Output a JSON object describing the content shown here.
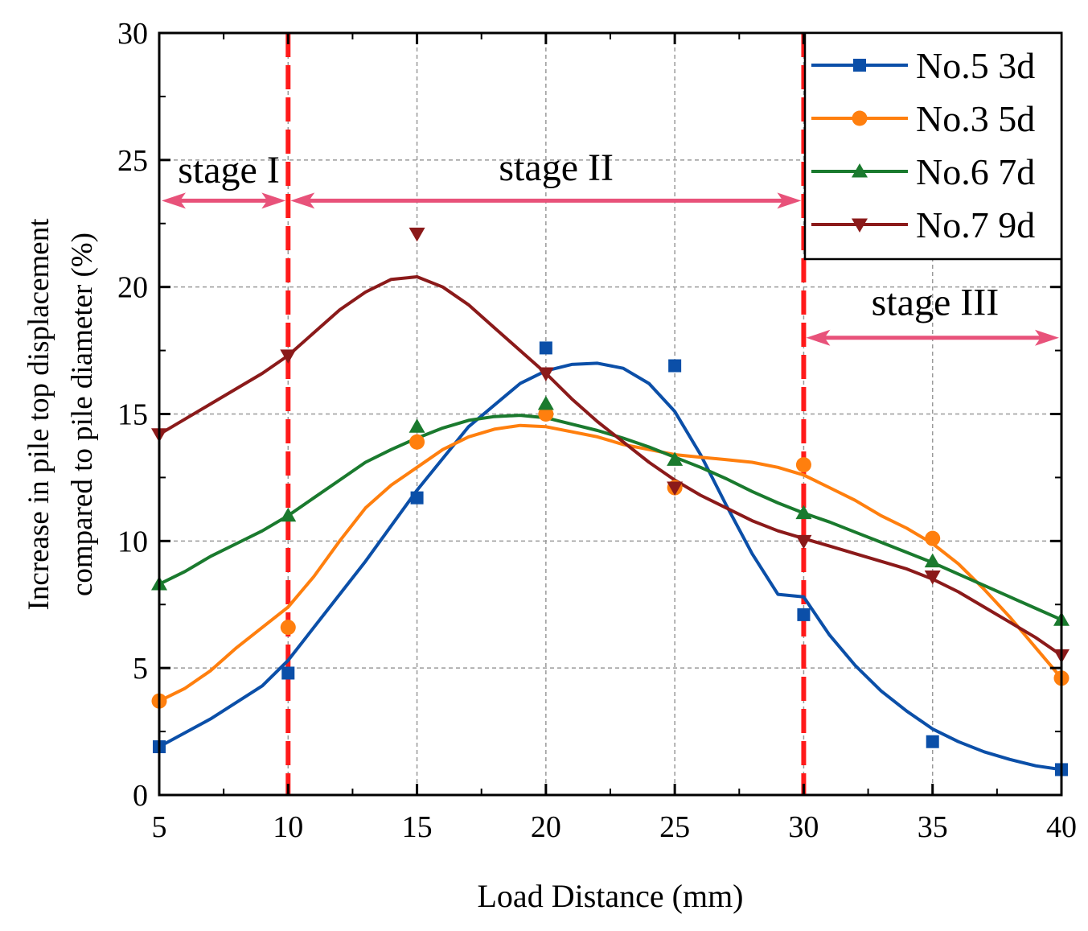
{
  "chart_data": {
    "type": "scatter",
    "title": "",
    "xlabel": "Load Distance (mm)",
    "ylabel_lines": [
      "Increase in pile top displacement",
      "compared to pile diameter (%)"
    ],
    "xlim": [
      5,
      40
    ],
    "ylim": [
      0,
      30
    ],
    "x_ticks": [
      5,
      10,
      15,
      20,
      25,
      30,
      35,
      40
    ],
    "y_ticks": [
      0,
      5,
      10,
      15,
      20,
      25,
      30
    ],
    "grid": true,
    "legend_position": "top-right",
    "series": [
      {
        "name": "No.5 3d",
        "color": "#0b4fa8",
        "marker": "square",
        "x": [
          5,
          10,
          15,
          20,
          25,
          30,
          35,
          40
        ],
        "values": [
          1.9,
          4.8,
          11.7,
          17.6,
          16.9,
          7.1,
          2.1,
          1.0
        ],
        "fit_curve": [
          [
            5,
            1.9
          ],
          [
            7,
            3.0
          ],
          [
            9,
            4.3
          ],
          [
            10,
            5.3
          ],
          [
            11,
            6.6
          ],
          [
            13,
            9.2
          ],
          [
            15,
            12.0
          ],
          [
            17,
            14.5
          ],
          [
            19,
            16.2
          ],
          [
            20,
            16.7
          ],
          [
            21,
            16.95
          ],
          [
            22,
            17.0
          ],
          [
            23,
            16.8
          ],
          [
            24,
            16.2
          ],
          [
            25,
            15.1
          ],
          [
            26,
            13.4
          ],
          [
            27,
            11.4
          ],
          [
            28,
            9.5
          ],
          [
            29,
            7.9
          ],
          [
            30,
            7.8
          ],
          [
            31,
            6.3
          ],
          [
            32,
            5.1
          ],
          [
            33,
            4.1
          ],
          [
            34,
            3.3
          ],
          [
            35,
            2.6
          ],
          [
            36,
            2.1
          ],
          [
            37,
            1.7
          ],
          [
            38,
            1.4
          ],
          [
            39,
            1.15
          ],
          [
            40,
            1.0
          ]
        ]
      },
      {
        "name": "No.3 5d",
        "color": "#ff7f0e",
        "marker": "circle",
        "x": [
          5,
          10,
          15,
          20,
          25,
          30,
          35,
          40
        ],
        "values": [
          3.7,
          6.6,
          13.9,
          15.0,
          12.1,
          13.0,
          10.1,
          4.6
        ],
        "fit_curve": [
          [
            5,
            3.7
          ],
          [
            6,
            4.2
          ],
          [
            7,
            4.9
          ],
          [
            8,
            5.8
          ],
          [
            9,
            6.6
          ],
          [
            10,
            7.4
          ],
          [
            11,
            8.6
          ],
          [
            12,
            10.0
          ],
          [
            13,
            11.3
          ],
          [
            14,
            12.2
          ],
          [
            15,
            12.9
          ],
          [
            16,
            13.6
          ],
          [
            17,
            14.1
          ],
          [
            18,
            14.4
          ],
          [
            19,
            14.55
          ],
          [
            20,
            14.5
          ],
          [
            21,
            14.3
          ],
          [
            22,
            14.1
          ],
          [
            23,
            13.8
          ],
          [
            24,
            13.6
          ],
          [
            25,
            13.4
          ],
          [
            26,
            13.3
          ],
          [
            27,
            13.2
          ],
          [
            28,
            13.1
          ],
          [
            29,
            12.9
          ],
          [
            30,
            12.6
          ],
          [
            31,
            12.1
          ],
          [
            32,
            11.6
          ],
          [
            33,
            11.0
          ],
          [
            34,
            10.5
          ],
          [
            35,
            9.9
          ],
          [
            36,
            9.1
          ],
          [
            37,
            8.1
          ],
          [
            38,
            7.0
          ],
          [
            39,
            5.8
          ],
          [
            40,
            4.6
          ]
        ]
      },
      {
        "name": "No.6 7d",
        "color": "#1a7a2e",
        "marker": "triangle-up",
        "x": [
          5,
          10,
          15,
          20,
          25,
          30,
          35,
          40
        ],
        "values": [
          8.3,
          11.0,
          14.5,
          15.4,
          13.2,
          11.1,
          9.2,
          6.9
        ],
        "fit_curve": [
          [
            5,
            8.3
          ],
          [
            6,
            8.8
          ],
          [
            7,
            9.4
          ],
          [
            8,
            9.9
          ],
          [
            9,
            10.4
          ],
          [
            10,
            11.0
          ],
          [
            11,
            11.7
          ],
          [
            12,
            12.4
          ],
          [
            13,
            13.1
          ],
          [
            14,
            13.6
          ],
          [
            15,
            14.05
          ],
          [
            16,
            14.45
          ],
          [
            17,
            14.75
          ],
          [
            18,
            14.9
          ],
          [
            19,
            14.95
          ],
          [
            20,
            14.85
          ],
          [
            21,
            14.6
          ],
          [
            22,
            14.35
          ],
          [
            23,
            14.05
          ],
          [
            24,
            13.7
          ],
          [
            25,
            13.3
          ],
          [
            26,
            12.9
          ],
          [
            27,
            12.45
          ],
          [
            28,
            11.95
          ],
          [
            29,
            11.5
          ],
          [
            30,
            11.1
          ],
          [
            31,
            10.75
          ],
          [
            32,
            10.35
          ],
          [
            33,
            9.95
          ],
          [
            34,
            9.55
          ],
          [
            35,
            9.15
          ],
          [
            36,
            8.7
          ],
          [
            37,
            8.25
          ],
          [
            38,
            7.8
          ],
          [
            39,
            7.35
          ],
          [
            40,
            6.9
          ]
        ]
      },
      {
        "name": "No.7 9d",
        "color": "#8b1a1a",
        "marker": "triangle-down",
        "x": [
          5,
          10,
          15,
          20,
          25,
          30,
          35,
          40
        ],
        "values": [
          14.2,
          17.3,
          22.1,
          16.6,
          12.1,
          10.0,
          8.6,
          5.5
        ],
        "fit_curve": [
          [
            5,
            14.2
          ],
          [
            6,
            14.8
          ],
          [
            7,
            15.4
          ],
          [
            8,
            16.0
          ],
          [
            9,
            16.6
          ],
          [
            10,
            17.3
          ],
          [
            11,
            18.2
          ],
          [
            12,
            19.1
          ],
          [
            13,
            19.8
          ],
          [
            14,
            20.3
          ],
          [
            15,
            20.4
          ],
          [
            16,
            20.0
          ],
          [
            17,
            19.3
          ],
          [
            18,
            18.4
          ],
          [
            19,
            17.5
          ],
          [
            20,
            16.6
          ],
          [
            21,
            15.6
          ],
          [
            22,
            14.7
          ],
          [
            23,
            13.9
          ],
          [
            24,
            13.1
          ],
          [
            25,
            12.4
          ],
          [
            26,
            11.8
          ],
          [
            27,
            11.3
          ],
          [
            28,
            10.8
          ],
          [
            29,
            10.4
          ],
          [
            30,
            10.1
          ],
          [
            31,
            9.8
          ],
          [
            32,
            9.5
          ],
          [
            33,
            9.2
          ],
          [
            34,
            8.9
          ],
          [
            35,
            8.5
          ],
          [
            36,
            8.0
          ],
          [
            37,
            7.4
          ],
          [
            38,
            6.8
          ],
          [
            39,
            6.2
          ],
          [
            40,
            5.5
          ]
        ]
      }
    ],
    "stage_boundaries": [
      10,
      30
    ],
    "boundary_color": "#ff1a1a",
    "arrow_color": "#e8527a",
    "stages": [
      {
        "label": "stage I",
        "x_from": 5,
        "x_to": 10,
        "arrow_y": 23.4,
        "label_x": 7.7,
        "label_y": 24.1
      },
      {
        "label": "stage II",
        "x_from": 10,
        "x_to": 30,
        "arrow_y": 23.4,
        "label_x": 20.4,
        "label_y": 24.2
      },
      {
        "label": "stage III",
        "x_from": 30,
        "x_to": 40,
        "arrow_y": 18.0,
        "label_x": 35.1,
        "label_y": 18.9
      }
    ]
  }
}
